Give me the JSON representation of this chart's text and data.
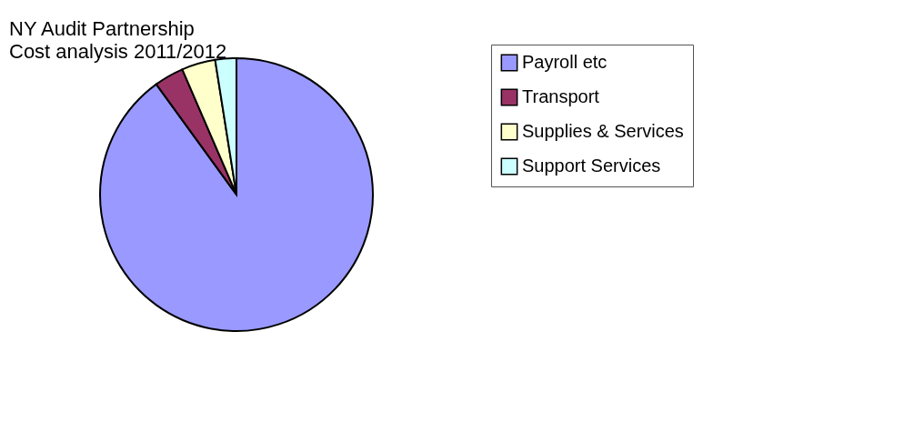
{
  "chart_data": {
    "type": "pie",
    "title": "NY Audit Partnership",
    "subtitle": "Cost analysis 2011/2012",
    "categories": [
      "Payroll etc",
      "Transport",
      "Supplies & Services",
      "Support Services"
    ],
    "values": [
      90,
      3.5,
      4,
      2.5
    ],
    "colors": [
      "#9999ff",
      "#993366",
      "#ffffcc",
      "#ccffff"
    ],
    "legend": "right"
  }
}
